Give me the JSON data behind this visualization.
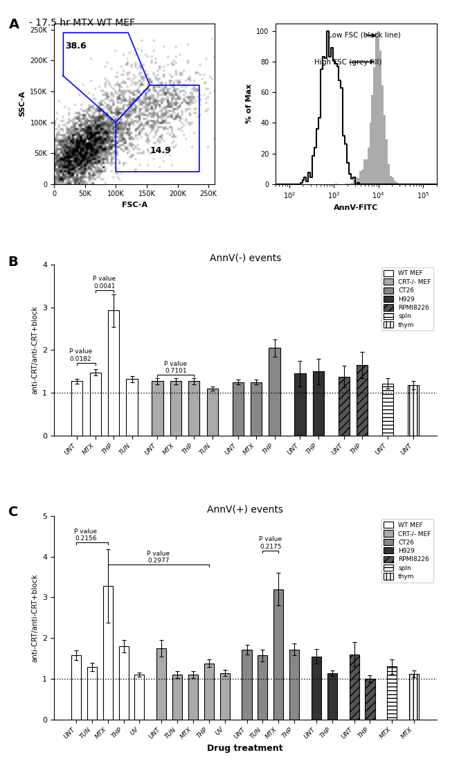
{
  "title_A": "A - 17.5 hr MTX WT MEF",
  "panel_B_title": "AnnV(-) events",
  "panel_C_title": "AnnV(+) events",
  "xlabel_C": "Drug treatment",
  "ylabel_B": "anti-CRT/anti-CRT+block",
  "ylabel_C": "anti-CRT/anti-CRT+block",
  "B_groups": [
    {
      "label": "WT MEF",
      "color": "#ffffff",
      "edgecolor": "#000000",
      "hatch": null,
      "bars": [
        {
          "x_label": "UNT",
          "val": 1.27,
          "err": 0.06
        },
        {
          "x_label": "MTX",
          "val": 1.48,
          "err": 0.08
        },
        {
          "x_label": "THP",
          "val": 2.92,
          "err": 0.38
        },
        {
          "x_label": "TUN",
          "val": 1.32,
          "err": 0.07
        }
      ]
    },
    {
      "label": "CRT-/- MEF",
      "color": "#aaaaaa",
      "edgecolor": "#000000",
      "hatch": null,
      "bars": [
        {
          "x_label": "UNT",
          "val": 1.27,
          "err": 0.07
        },
        {
          "x_label": "MTX",
          "val": 1.27,
          "err": 0.07
        },
        {
          "x_label": "THP",
          "val": 1.27,
          "err": 0.07
        },
        {
          "x_label": "TUN",
          "val": 1.1,
          "err": 0.05
        }
      ]
    },
    {
      "label": "CT26",
      "color": "#888888",
      "edgecolor": "#000000",
      "hatch": null,
      "bars": [
        {
          "x_label": "UNT",
          "val": 1.25,
          "err": 0.06
        },
        {
          "x_label": "MTX",
          "val": 1.25,
          "err": 0.06
        },
        {
          "x_label": "THP",
          "val": 2.05,
          "err": 0.2
        }
      ]
    },
    {
      "label": "H929",
      "color": "#333333",
      "edgecolor": "#000000",
      "hatch": null,
      "bars": [
        {
          "x_label": "UNT",
          "val": 1.45,
          "err": 0.3
        },
        {
          "x_label": "THP",
          "val": 1.5,
          "err": 0.3
        }
      ]
    },
    {
      "label": "RPMI8226",
      "color": "#555555",
      "edgecolor": "#000000",
      "hatch": "///",
      "bars": [
        {
          "x_label": "UNT",
          "val": 1.38,
          "err": 0.25
        },
        {
          "x_label": "THP",
          "val": 1.65,
          "err": 0.3
        }
      ]
    },
    {
      "label": "spln",
      "color": "#ffffff",
      "edgecolor": "#000000",
      "hatch": "---",
      "bars": [
        {
          "x_label": "UNT",
          "val": 1.22,
          "err": 0.12
        }
      ]
    },
    {
      "label": "thym",
      "color": "#ffffff",
      "edgecolor": "#000000",
      "hatch": "|||",
      "bars": [
        {
          "x_label": "UNT",
          "val": 1.18,
          "err": 0.09
        }
      ]
    }
  ],
  "C_groups": [
    {
      "label": "WT MEF",
      "color": "#ffffff",
      "edgecolor": "#000000",
      "hatch": null,
      "bars": [
        {
          "x_label": "UNT",
          "val": 1.58,
          "err": 0.12
        },
        {
          "x_label": "TUN",
          "val": 1.29,
          "err": 0.1
        },
        {
          "x_label": "MTX",
          "val": 3.28,
          "err": 0.9
        },
        {
          "x_label": "THP",
          "val": 1.8,
          "err": 0.15
        },
        {
          "x_label": "UV",
          "val": 1.1,
          "err": 0.05
        }
      ]
    },
    {
      "label": "CRT-/- MEF",
      "color": "#aaaaaa",
      "edgecolor": "#000000",
      "hatch": null,
      "bars": [
        {
          "x_label": "UNT",
          "val": 1.75,
          "err": 0.2
        },
        {
          "x_label": "TUN",
          "val": 1.1,
          "err": 0.08
        },
        {
          "x_label": "MTX",
          "val": 1.1,
          "err": 0.08
        },
        {
          "x_label": "THP",
          "val": 1.38,
          "err": 0.1
        },
        {
          "x_label": "UV",
          "val": 1.14,
          "err": 0.08
        }
      ]
    },
    {
      "label": "CT26",
      "color": "#888888",
      "edgecolor": "#000000",
      "hatch": null,
      "bars": [
        {
          "x_label": "UNT",
          "val": 1.72,
          "err": 0.12
        },
        {
          "x_label": "TUN",
          "val": 1.57,
          "err": 0.15
        },
        {
          "x_label": "MTX",
          "val": 3.2,
          "err": 0.4
        },
        {
          "x_label": "THP",
          "val": 1.72,
          "err": 0.15
        }
      ]
    },
    {
      "label": "H929",
      "color": "#333333",
      "edgecolor": "#000000",
      "hatch": null,
      "bars": [
        {
          "x_label": "UNT",
          "val": 1.55,
          "err": 0.18
        },
        {
          "x_label": "THP",
          "val": 1.13,
          "err": 0.07
        }
      ]
    },
    {
      "label": "RPMI8226",
      "color": "#555555",
      "edgecolor": "#000000",
      "hatch": "///",
      "bars": [
        {
          "x_label": "UNT",
          "val": 1.6,
          "err": 0.3
        },
        {
          "x_label": "THP",
          "val": 1.0,
          "err": 0.08
        }
      ]
    },
    {
      "label": "spln",
      "color": "#ffffff",
      "edgecolor": "#000000",
      "hatch": "---",
      "bars": [
        {
          "x_label": "MTX",
          "val": 1.3,
          "err": 0.18
        }
      ]
    },
    {
      "label": "thym",
      "color": "#ffffff",
      "edgecolor": "#000000",
      "hatch": "|||",
      "bars": [
        {
          "x_label": "MTX",
          "val": 1.12,
          "err": 0.08
        }
      ]
    }
  ],
  "bg_color": "#ffffff",
  "bar_width": 0.62,
  "B_ylim": [
    0,
    4
  ],
  "C_ylim": [
    0,
    5
  ],
  "B_yticks": [
    0,
    1,
    2,
    3,
    4
  ],
  "C_yticks": [
    0,
    1,
    2,
    3,
    4,
    5
  ],
  "colors_legend": [
    "#ffffff",
    "#aaaaaa",
    "#888888",
    "#333333",
    "#555555",
    "#ffffff",
    "#ffffff"
  ],
  "hatches_legend": [
    null,
    null,
    null,
    null,
    "///",
    "---",
    "|||"
  ],
  "labels_legend": [
    "WT MEF",
    "CRT-/- MEF",
    "CT26",
    "H929",
    "RPMI8226",
    "spln",
    "thym"
  ]
}
